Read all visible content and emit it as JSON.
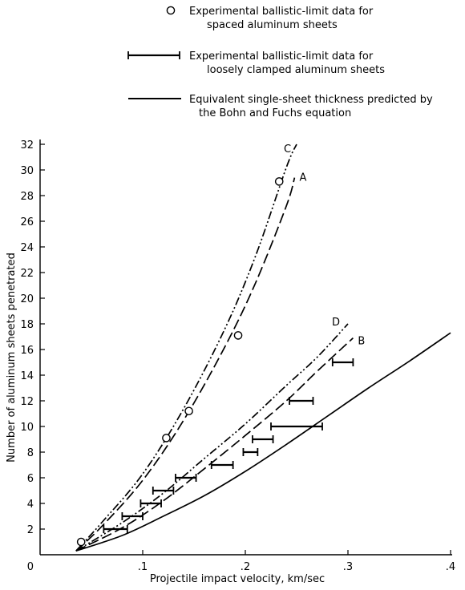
{
  "chart_data": {
    "type": "line",
    "title": "",
    "xlabel": "Projectile impact velocity, km/sec",
    "ylabel": "Number of aluminum sheets penetrated",
    "xlim": [
      0,
      0.4
    ],
    "ylim": [
      0,
      32
    ],
    "x_ticks": [
      {
        "value": 0,
        "label": "0"
      },
      {
        "value": 0.1,
        "label": ".1"
      },
      {
        "value": 0.2,
        "label": ".2"
      },
      {
        "value": 0.3,
        "label": ".3"
      },
      {
        "value": 0.4,
        "label": ".4"
      }
    ],
    "y_ticks": [
      {
        "value": 2,
        "label": "2"
      },
      {
        "value": 4,
        "label": "4"
      },
      {
        "value": 6,
        "label": "6"
      },
      {
        "value": 8,
        "label": "8"
      },
      {
        "value": 10,
        "label": "10"
      },
      {
        "value": 12,
        "label": "12"
      },
      {
        "value": 14,
        "label": "14"
      },
      {
        "value": 16,
        "label": "16"
      },
      {
        "value": 18,
        "label": "18"
      },
      {
        "value": 20,
        "label": "20"
      },
      {
        "value": 22,
        "label": "22"
      },
      {
        "value": 24,
        "label": "24"
      },
      {
        "value": 26,
        "label": "26"
      },
      {
        "value": 28,
        "label": "28"
      },
      {
        "value": 30,
        "label": "30"
      },
      {
        "value": 32,
        "label": "32"
      }
    ],
    "legend": {
      "placement": "top",
      "entries": [
        {
          "marker": "circle",
          "lines": [
            "Experimental ballistic-limit data for",
            "spaced aluminum sheets"
          ]
        },
        {
          "marker": "errorbar",
          "lines": [
            "Experimental ballistic-limit data for",
            "loosely clamped aluminum sheets"
          ]
        },
        {
          "marker": "solid-line",
          "lines": [
            "Equivalent single-sheet thickness predicted by",
            "the Bohn and Fuchs equation"
          ]
        }
      ]
    },
    "curves": [
      {
        "label": "C",
        "style": "dash-dot-dot",
        "points": [
          [
            0.035,
            0.3
          ],
          [
            0.06,
            2.5
          ],
          [
            0.1,
            6.3
          ],
          [
            0.14,
            11.4
          ],
          [
            0.18,
            17.6
          ],
          [
            0.21,
            23.3
          ],
          [
            0.24,
            30.2
          ],
          [
            0.25,
            32
          ]
        ]
      },
      {
        "label": "A",
        "style": "long-dash",
        "points": [
          [
            0.035,
            0.3
          ],
          [
            0.06,
            2.2
          ],
          [
            0.1,
            5.8
          ],
          [
            0.14,
            10.5
          ],
          [
            0.18,
            16.2
          ],
          [
            0.21,
            21.2
          ],
          [
            0.24,
            27.2
          ],
          [
            0.248,
            29.4
          ]
        ]
      },
      {
        "label": "D",
        "style": "dash-dot-dot",
        "points": [
          [
            0.035,
            0.3
          ],
          [
            0.08,
            2.5
          ],
          [
            0.12,
            4.8
          ],
          [
            0.16,
            7.5
          ],
          [
            0.2,
            10.2
          ],
          [
            0.24,
            13.2
          ],
          [
            0.27,
            15.4
          ],
          [
            0.3,
            18
          ]
        ]
      },
      {
        "label": "B",
        "style": "long-dash",
        "points": [
          [
            0.035,
            0.3
          ],
          [
            0.08,
            2.1
          ],
          [
            0.12,
            4.2
          ],
          [
            0.16,
            6.7
          ],
          [
            0.2,
            9.3
          ],
          [
            0.24,
            12.0
          ],
          [
            0.27,
            14.3
          ],
          [
            0.305,
            16.9
          ]
        ]
      },
      {
        "label": "",
        "style": "solid",
        "points": [
          [
            0.035,
            0.3
          ],
          [
            0.08,
            1.5
          ],
          [
            0.12,
            3.0
          ],
          [
            0.16,
            4.6
          ],
          [
            0.2,
            6.5
          ],
          [
            0.24,
            8.6
          ],
          [
            0.28,
            10.8
          ],
          [
            0.32,
            13.0
          ],
          [
            0.36,
            15.1
          ],
          [
            0.4,
            17.3
          ]
        ]
      }
    ],
    "spaced_sheet_points": [
      {
        "x": 0.04,
        "y": 1
      },
      {
        "x": 0.123,
        "y": 9.1
      },
      {
        "x": 0.145,
        "y": 11.2
      },
      {
        "x": 0.193,
        "y": 17.1
      },
      {
        "x": 0.233,
        "y": 29.1
      }
    ],
    "clamped_sheet_ranges": [
      {
        "y": 2,
        "x_min": 0.062,
        "x_max": 0.085
      },
      {
        "y": 3,
        "x_min": 0.08,
        "x_max": 0.1
      },
      {
        "y": 4,
        "x_min": 0.098,
        "x_max": 0.118
      },
      {
        "y": 5,
        "x_min": 0.11,
        "x_max": 0.13
      },
      {
        "y": 6,
        "x_min": 0.132,
        "x_max": 0.152
      },
      {
        "y": 7,
        "x_min": 0.167,
        "x_max": 0.188
      },
      {
        "y": 8,
        "x_min": 0.198,
        "x_max": 0.212
      },
      {
        "y": 9,
        "x_min": 0.207,
        "x_max": 0.227
      },
      {
        "y": 10,
        "x_min": 0.225,
        "x_max": 0.275
      },
      {
        "y": 12,
        "x_min": 0.243,
        "x_max": 0.266
      },
      {
        "y": 15,
        "x_min": 0.285,
        "x_max": 0.305
      }
    ]
  }
}
